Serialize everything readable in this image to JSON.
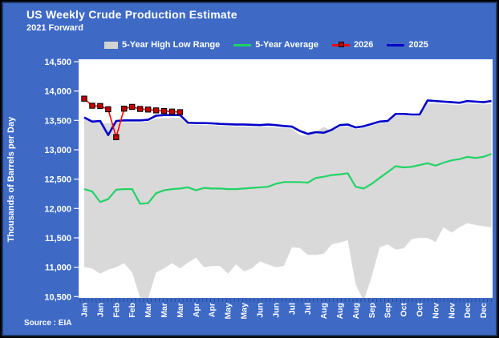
{
  "header": {
    "title": "US Weekly Crude Production Estimate",
    "subtitle": "2021 Forward"
  },
  "source": "Source : EIA",
  "legend": [
    {
      "label": "5-Year High Low Range",
      "type": "box",
      "color": "#D3D3D3"
    },
    {
      "label": "5-Year Average",
      "type": "line",
      "color": "#21D366"
    },
    {
      "label": "2026",
      "type": "line-marker",
      "color": "#FF0000",
      "marker_color": "#C00000"
    },
    {
      "label": "2025",
      "type": "line",
      "color": "#0000C8"
    }
  ],
  "y_axis": {
    "title": "Thousands of Barrels per Day",
    "tick_labels": [
      "14,500",
      "14,000",
      "13,500",
      "13,000",
      "12,500",
      "12,000",
      "11,500",
      "11,000",
      "10,500"
    ]
  },
  "x_axis": {
    "tick_labels": [
      "Jan",
      "Jan",
      "Feb",
      "Feb",
      "Mar",
      "Mar",
      "Mar",
      "Apr",
      "Apr",
      "May",
      "May",
      "Jun",
      "Jun",
      "Jul",
      "Jul",
      "Aug",
      "Aug",
      "Aug",
      "Sep",
      "Sep",
      "Oct",
      "Oct",
      "Nov",
      "Nov",
      "Dec",
      "Dec"
    ]
  },
  "colors": {
    "background": "#3E6AC6",
    "inner_border": "#1F3864",
    "plot_background": "#FFFFFF",
    "band_fill": "#D9D9D9",
    "avg_line": "#21D366",
    "line_2025": "#0000C8",
    "line_2026": "#FF0000",
    "marker_2026": "#C00000",
    "axis_text": "#FFFFFF",
    "x_tick": "#24478F"
  },
  "chart_data": {
    "type": "line",
    "title": "US Weekly Crude Production Estimate",
    "subtitle": "2021 Forward",
    "ylabel": "Thousands of Barrels per Day",
    "ylim": [
      10500,
      14500
    ],
    "y_tick_step": 500,
    "weeks": 52,
    "x_tick_labels_every_2_weeks": [
      "Jan",
      "Jan",
      "Feb",
      "Feb",
      "Mar",
      "Mar",
      "Mar",
      "Apr",
      "Apr",
      "May",
      "May",
      "Jun",
      "Jun",
      "Jul",
      "Jul",
      "Aug",
      "Aug",
      "Aug",
      "Sep",
      "Sep",
      "Oct",
      "Oct",
      "Nov",
      "Nov",
      "Dec",
      "Dec"
    ],
    "legend_position": "top",
    "grid": false,
    "series": [
      {
        "name": "5-Year High Low Range",
        "type": "band",
        "color": "#D9D9D9",
        "high": [
          13520,
          13470,
          13460,
          13450,
          13460,
          13470,
          13470,
          13470,
          13480,
          13530,
          13540,
          13540,
          13540,
          13430,
          13425,
          13420,
          13420,
          13410,
          13405,
          13400,
          13395,
          13390,
          13390,
          13390,
          13380,
          13370,
          13360,
          13250,
          13240,
          13310,
          13390,
          13320,
          13390,
          13400,
          13350,
          13370,
          13410,
          13450,
          13460,
          13580,
          13580,
          13570,
          13570,
          13790,
          13790,
          13780,
          13770,
          13760,
          13790,
          13780,
          13770,
          13780
        ],
        "low": [
          11000,
          10980,
          10890,
          10960,
          11000,
          11070,
          10910,
          10480,
          10470,
          10910,
          10980,
          11070,
          10980,
          11080,
          11160,
          11000,
          11020,
          11020,
          10890,
          11050,
          10930,
          10980,
          11100,
          11050,
          11000,
          11020,
          11340,
          11330,
          11210,
          11210,
          11230,
          11390,
          11420,
          11460,
          10700,
          10430,
          10840,
          11340,
          11390,
          11300,
          11320,
          11480,
          11500,
          11500,
          11430,
          11680,
          11590,
          11680,
          11750,
          11720,
          11700,
          11680
        ]
      },
      {
        "name": "5-Year Average",
        "type": "line",
        "color": "#21D366",
        "values": [
          12330,
          12290,
          12110,
          12160,
          12320,
          12330,
          12330,
          12080,
          12090,
          12260,
          12310,
          12330,
          12340,
          12360,
          12310,
          12350,
          12340,
          12340,
          12330,
          12330,
          12340,
          12350,
          12360,
          12370,
          12420,
          12450,
          12450,
          12450,
          12440,
          12520,
          12540,
          12570,
          12580,
          12600,
          12370,
          12340,
          12420,
          12520,
          12620,
          12720,
          12700,
          12710,
          12740,
          12770,
          12730,
          12780,
          12820,
          12840,
          12880,
          12860,
          12880,
          12930
        ]
      },
      {
        "name": "2026",
        "type": "line-marker",
        "color": "#FF0000",
        "marker_color": "#C00000",
        "values": [
          13870,
          13750,
          13745,
          13690,
          13215,
          13700,
          13730,
          13695,
          13685,
          13670,
          13660,
          13650,
          13640
        ]
      },
      {
        "name": "2025",
        "type": "line",
        "color": "#0000C8",
        "values": [
          13550,
          13480,
          13490,
          13250,
          13490,
          13500,
          13500,
          13500,
          13510,
          13580,
          13590,
          13590,
          13590,
          13460,
          13455,
          13455,
          13450,
          13440,
          13435,
          13430,
          13430,
          13425,
          13420,
          13430,
          13420,
          13405,
          13395,
          13320,
          13270,
          13300,
          13290,
          13340,
          13420,
          13430,
          13380,
          13400,
          13440,
          13480,
          13490,
          13610,
          13610,
          13600,
          13600,
          13840,
          13830,
          13820,
          13810,
          13800,
          13830,
          13820,
          13810,
          13830
        ]
      }
    ]
  }
}
